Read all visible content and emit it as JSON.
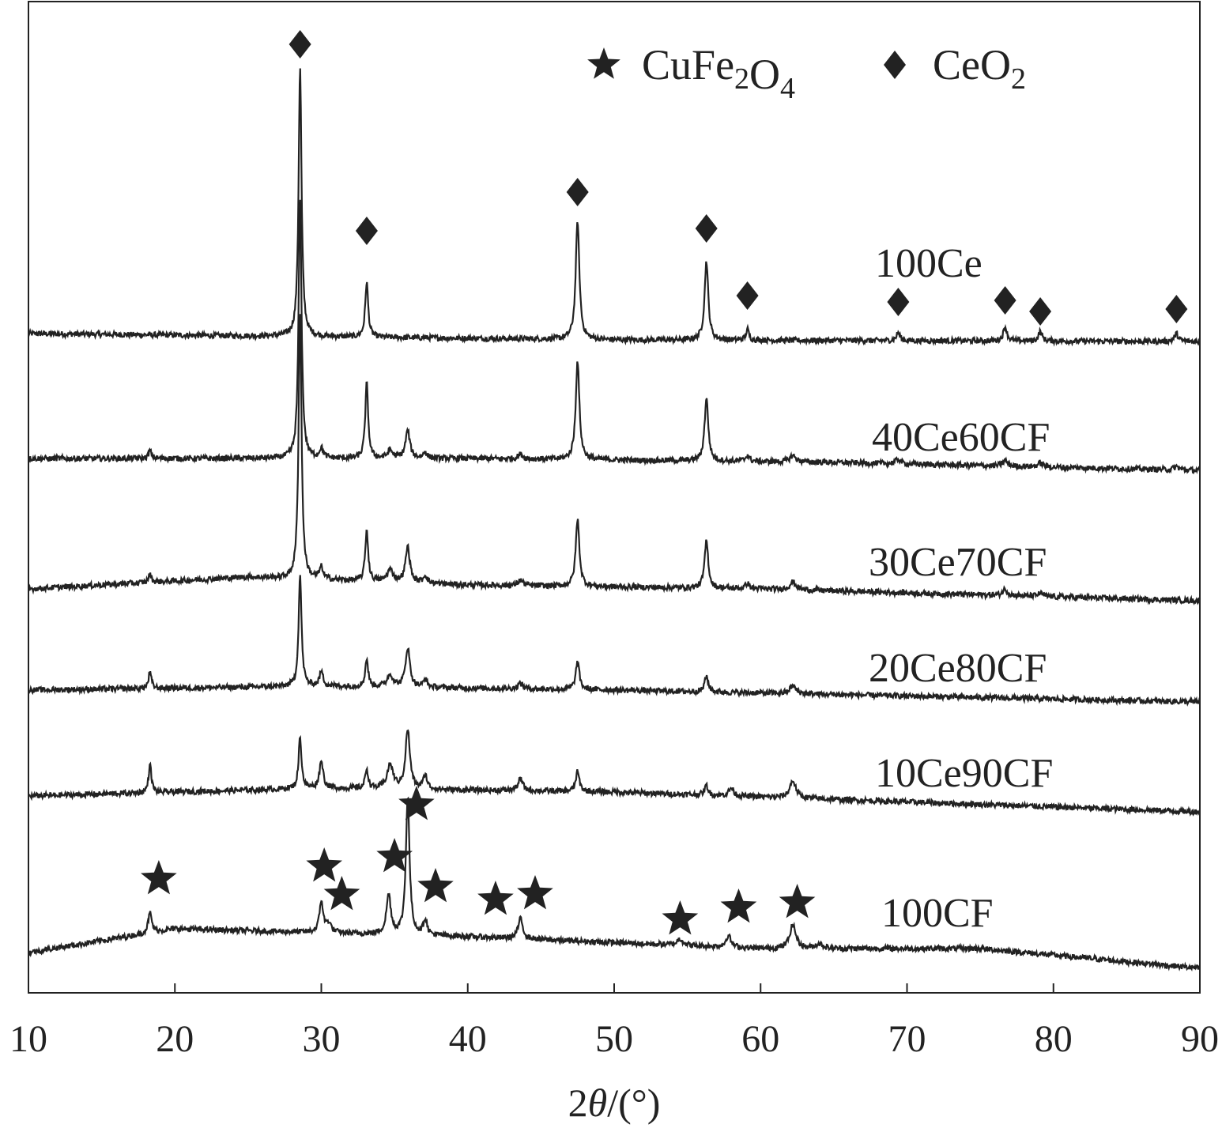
{
  "chart_data": {
    "type": "line",
    "title": "",
    "xlabel": "2θ/(°)",
    "xlabel_parts": {
      "prefix": "2",
      "symbol": "θ",
      "suffix": "/(°)"
    },
    "ylabel": "",
    "xlim": [
      10,
      90
    ],
    "x_ticks": [
      10,
      20,
      30,
      40,
      50,
      60,
      70,
      80,
      90
    ],
    "y_ticks_shown": false,
    "grid": false,
    "legend": {
      "placement": "top-right",
      "entries": [
        {
          "marker": "star",
          "label": "CuFe2O4",
          "parts": [
            [
              "Cu",
              ""
            ],
            [
              "Fe",
              ""
            ],
            [
              "2",
              "sub"
            ],
            [
              "O",
              ""
            ],
            [
              "4",
              "sub"
            ]
          ]
        },
        {
          "marker": "diamond",
          "label": "CeO2",
          "parts": [
            [
              "Ce",
              ""
            ],
            [
              "O",
              ""
            ],
            [
              "2",
              "sub"
            ]
          ]
        }
      ]
    },
    "series": [
      {
        "name": "100Ce",
        "baseline": [
          [
            10,
            1.0
          ],
          [
            50,
            0.2
          ],
          [
            90,
            0.0
          ]
        ],
        "peaks": [
          [
            28.55,
            34.0,
            0.12
          ],
          [
            33.1,
            7.0,
            0.12
          ],
          [
            47.5,
            15.0,
            0.15
          ],
          [
            56.3,
            10.0,
            0.15
          ],
          [
            59.1,
            1.4,
            0.12
          ],
          [
            69.4,
            1.0,
            0.15
          ],
          [
            76.7,
            1.8,
            0.15
          ],
          [
            79.1,
            1.2,
            0.15
          ],
          [
            88.4,
            1.0,
            0.15
          ]
        ]
      },
      {
        "name": "40Ce60CF",
        "baseline": [
          [
            10,
            1.5
          ],
          [
            40,
            1.5
          ],
          [
            65,
            1.0
          ],
          [
            90,
            0.0
          ]
        ],
        "peaks": [
          [
            18.3,
            1.0,
            0.12
          ],
          [
            28.55,
            33.0,
            0.12
          ],
          [
            30.0,
            1.2,
            0.15
          ],
          [
            33.1,
            9.5,
            0.12
          ],
          [
            34.7,
            1.0,
            0.2
          ],
          [
            35.9,
            3.5,
            0.18
          ],
          [
            37.1,
            0.8,
            0.15
          ],
          [
            43.6,
            0.6,
            0.2
          ],
          [
            47.5,
            12.5,
            0.15
          ],
          [
            56.3,
            8.0,
            0.15
          ],
          [
            59.1,
            0.8,
            0.15
          ],
          [
            62.2,
            0.8,
            0.25
          ],
          [
            69.4,
            0.6,
            0.2
          ],
          [
            76.7,
            0.7,
            0.2
          ],
          [
            79.1,
            0.5,
            0.2
          ],
          [
            88.4,
            0.4,
            0.2
          ]
        ]
      },
      {
        "name": "30Ce70CF",
        "baseline": [
          [
            10,
            1.5
          ],
          [
            25,
            3.0
          ],
          [
            40,
            2.0
          ],
          [
            60,
            1.5
          ],
          [
            90,
            0.0
          ]
        ],
        "peaks": [
          [
            18.3,
            1.0,
            0.12
          ],
          [
            28.55,
            34.0,
            0.12
          ],
          [
            30.0,
            1.5,
            0.15
          ],
          [
            33.1,
            6.5,
            0.12
          ],
          [
            34.7,
            1.5,
            0.25
          ],
          [
            35.9,
            4.5,
            0.18
          ],
          [
            37.1,
            1.0,
            0.15
          ],
          [
            43.6,
            0.7,
            0.2
          ],
          [
            47.5,
            8.5,
            0.15
          ],
          [
            56.3,
            6.0,
            0.15
          ],
          [
            59.1,
            0.7,
            0.15
          ],
          [
            62.2,
            1.0,
            0.25
          ],
          [
            76.7,
            0.8,
            0.2
          ],
          [
            79.1,
            0.4,
            0.2
          ]
        ]
      },
      {
        "name": "20Ce80CF",
        "baseline": [
          [
            10,
            1.5
          ],
          [
            30,
            2.0
          ],
          [
            50,
            1.5
          ],
          [
            90,
            0.0
          ]
        ],
        "peaks": [
          [
            18.3,
            2.0,
            0.12
          ],
          [
            28.55,
            14.0,
            0.12
          ],
          [
            30.0,
            1.8,
            0.15
          ],
          [
            33.1,
            3.5,
            0.12
          ],
          [
            34.7,
            1.5,
            0.25
          ],
          [
            35.9,
            5.0,
            0.18
          ],
          [
            37.1,
            1.0,
            0.15
          ],
          [
            43.6,
            0.7,
            0.2
          ],
          [
            47.5,
            3.5,
            0.15
          ],
          [
            56.3,
            2.0,
            0.15
          ],
          [
            62.2,
            1.0,
            0.25
          ]
        ]
      },
      {
        "name": "10Ce90CF",
        "baseline": [
          [
            10,
            0.5
          ],
          [
            30,
            1.5
          ],
          [
            50,
            1.0
          ],
          [
            90,
            -1.5
          ]
        ],
        "peaks": [
          [
            18.3,
            3.5,
            0.12
          ],
          [
            28.55,
            6.5,
            0.12
          ],
          [
            30.0,
            3.5,
            0.15
          ],
          [
            33.1,
            2.5,
            0.12
          ],
          [
            34.7,
            3.0,
            0.25
          ],
          [
            35.9,
            7.5,
            0.18
          ],
          [
            37.1,
            1.8,
            0.15
          ],
          [
            43.6,
            1.5,
            0.2
          ],
          [
            47.5,
            2.5,
            0.15
          ],
          [
            56.3,
            1.2,
            0.15
          ],
          [
            58.0,
            1.0,
            0.2
          ],
          [
            62.2,
            2.2,
            0.25
          ]
        ]
      },
      {
        "name": "100CF",
        "baseline": [
          [
            10,
            0.5
          ],
          [
            20,
            3.5
          ],
          [
            40,
            2.5
          ],
          [
            60,
            1.0
          ],
          [
            75,
            1.0
          ],
          [
            90,
            -1.5
          ]
        ],
        "peaks": [
          [
            18.3,
            2.5,
            0.15
          ],
          [
            30.0,
            4.0,
            0.15
          ],
          [
            30.5,
            1.2,
            0.2
          ],
          [
            34.6,
            5.0,
            0.18
          ],
          [
            35.9,
            17.5,
            0.15
          ],
          [
            37.1,
            2.0,
            0.15
          ],
          [
            43.6,
            2.5,
            0.2
          ],
          [
            54.5,
            0.8,
            0.25
          ],
          [
            57.8,
            1.5,
            0.2
          ],
          [
            62.2,
            3.0,
            0.25
          ],
          [
            64.0,
            0.6,
            0.3
          ]
        ]
      }
    ],
    "peak_markers": {
      "CeO2": [
        28.55,
        33.1,
        47.5,
        56.3,
        59.1,
        69.4,
        76.7,
        79.1,
        88.4
      ],
      "CuFe2O4": [
        18.3,
        30.0,
        30.5,
        34.6,
        35.9,
        37.1,
        41.9,
        43.6,
        54.5,
        57.8,
        62.2
      ]
    }
  }
}
